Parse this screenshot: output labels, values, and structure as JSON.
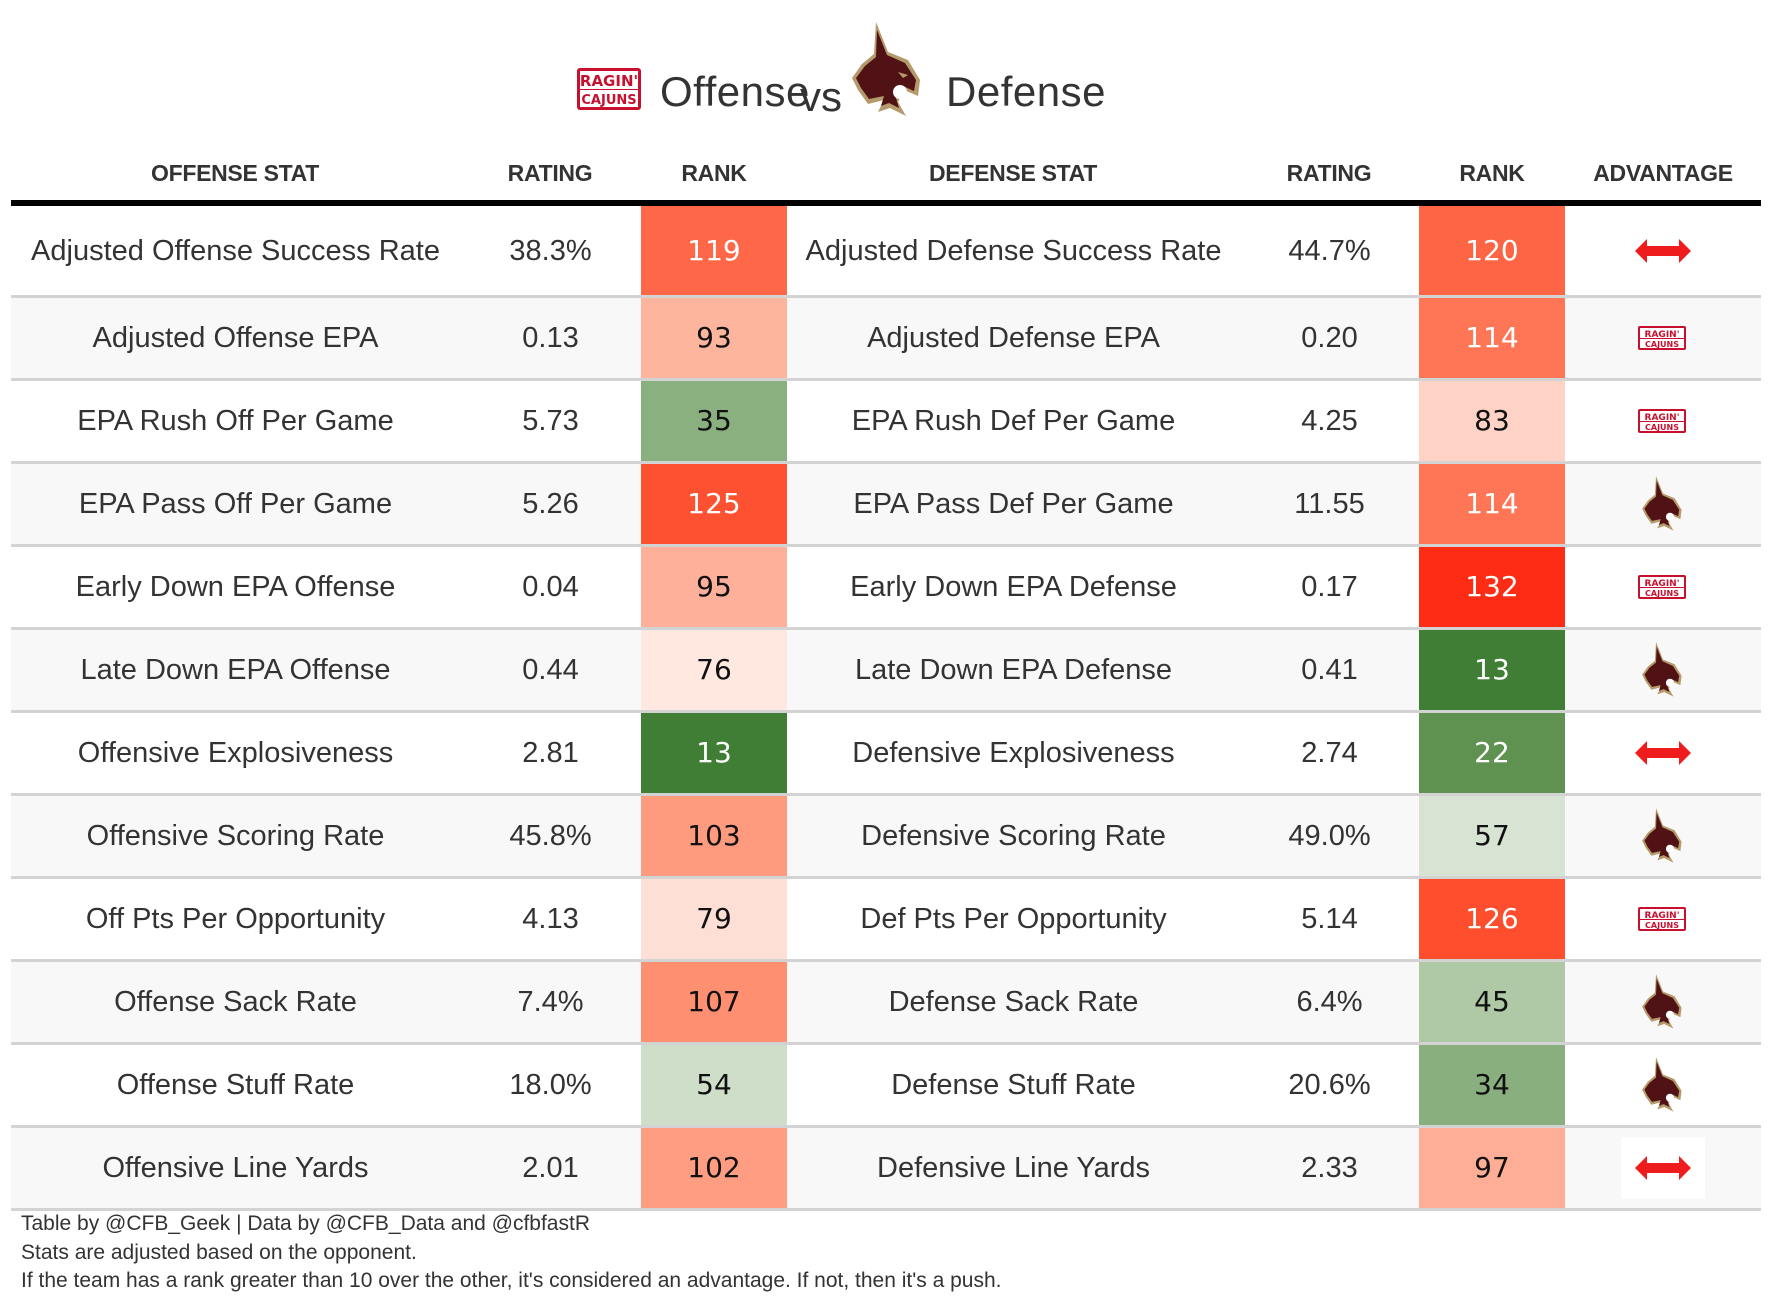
{
  "title": {
    "offense_team_logo": "ragin-cajuns-logo",
    "offense_label": "Offense",
    "vs_label": "vs",
    "defense_team_logo": "texas-state-bobcat-logo",
    "defense_label": "Defense"
  },
  "headers": {
    "offense_stat": "OFFENSE STAT",
    "offense_rating": "RATING",
    "offense_rank": "RANK",
    "defense_stat": "DEFENSE STAT",
    "defense_rating": "RATING",
    "defense_rank": "RANK",
    "advantage": "ADVANTAGE"
  },
  "colors": {
    "offense_logo_red": "#c8102e",
    "bobcat_maroon": "#501214",
    "bobcat_gold": "#b59a6b",
    "push_arrow_red": "#ee1c1c"
  },
  "rows": [
    {
      "off_stat": "Adjusted Offense Success Rate",
      "off_rating": "38.3%",
      "off_rank": "119",
      "off_rank_color": "#fe6747",
      "off_rank_text": "dark",
      "def_stat": "Adjusted Defense Success Rate",
      "def_rating": "44.7%",
      "def_rank": "120",
      "def_rank_color": "#fe6544",
      "def_rank_text": "dark",
      "advantage": "push"
    },
    {
      "off_stat": "Adjusted Offense EPA",
      "off_rating": "0.13",
      "off_rank": "93",
      "off_rank_color": "#feb59e",
      "off_rank_text": "light",
      "def_stat": "Adjusted Defense EPA",
      "def_rating": "0.20",
      "def_rank": "114",
      "def_rank_color": "#fe7656",
      "def_rank_text": "dark",
      "advantage": "offense"
    },
    {
      "off_stat": "EPA Rush Off Per Game",
      "off_rating": "5.73",
      "off_rank": "35",
      "off_rank_color": "#8bb07f",
      "off_rank_text": "light",
      "def_stat": "EPA Rush Def Per Game",
      "def_rating": "4.25",
      "def_rank": "83",
      "def_rank_color": "#fed3c5",
      "def_rank_text": "light",
      "advantage": "offense"
    },
    {
      "off_stat": "EPA Pass Off Per Game",
      "off_rating": "5.26",
      "off_rank": "125",
      "off_rank_color": "#fe5131",
      "off_rank_text": "dark",
      "def_stat": "EPA Pass Def Per Game",
      "def_rating": "11.55",
      "def_rank": "114",
      "def_rank_color": "#fe7656",
      "def_rank_text": "dark",
      "advantage": "defense"
    },
    {
      "off_stat": "Early Down EPA Offense",
      "off_rating": "0.04",
      "off_rank": "95",
      "off_rank_color": "#feb09a",
      "off_rank_text": "light",
      "def_stat": "Early Down EPA Defense",
      "def_rating": "0.17",
      "def_rank": "132",
      "def_rank_color": "#fe2c14",
      "def_rank_text": "dark",
      "advantage": "offense"
    },
    {
      "off_stat": "Late Down EPA Offense",
      "off_rating": "0.44",
      "off_rank": "76",
      "off_rank_color": "#fee8e0",
      "off_rank_text": "light",
      "def_stat": "Late Down EPA Defense",
      "def_rating": "0.41",
      "def_rank": "13",
      "def_rank_color": "#407d35",
      "def_rank_text": "dark",
      "advantage": "defense"
    },
    {
      "off_stat": "Offensive Explosiveness",
      "off_rating": "2.81",
      "off_rank": "13",
      "off_rank_color": "#407d35",
      "off_rank_text": "dark",
      "def_stat": "Defensive Explosiveness",
      "def_rating": "2.74",
      "def_rank": "22",
      "def_rank_color": "#5f9251",
      "def_rank_text": "dark",
      "advantage": "push"
    },
    {
      "off_stat": "Offensive Scoring Rate",
      "off_rating": "45.8%",
      "off_rank": "103",
      "off_rank_color": "#fe9b7f",
      "off_rank_text": "light",
      "def_stat": "Defensive Scoring Rate",
      "def_rating": "49.0%",
      "def_rank": "57",
      "def_rank_color": "#d8e4d3",
      "def_rank_text": "light",
      "advantage": "defense"
    },
    {
      "off_stat": "Off Pts Per Opportunity",
      "off_rating": "4.13",
      "off_rank": "79",
      "off_rank_color": "#fedfd6",
      "off_rank_text": "light",
      "def_stat": "Def Pts Per Opportunity",
      "def_rating": "5.14",
      "def_rank": "126",
      "def_rank_color": "#fe4e2e",
      "def_rank_text": "dark",
      "advantage": "offense"
    },
    {
      "off_stat": "Offense Sack Rate",
      "off_rating": "7.4%",
      "off_rank": "107",
      "off_rank_color": "#fe8f71",
      "off_rank_text": "light",
      "def_stat": "Defense Sack Rate",
      "def_rating": "6.4%",
      "def_rank": "45",
      "def_rank_color": "#afc9a6",
      "def_rank_text": "light",
      "advantage": "defense"
    },
    {
      "off_stat": "Offense Stuff Rate",
      "off_rating": "18.0%",
      "off_rank": "54",
      "off_rank_color": "#cfdec9",
      "off_rank_text": "light",
      "def_stat": "Defense Stuff Rate",
      "def_rating": "20.6%",
      "def_rank": "34",
      "def_rank_color": "#8aaf7e",
      "def_rank_text": "light",
      "advantage": "defense"
    },
    {
      "off_stat": "Offensive Line Yards",
      "off_rating": "2.01",
      "off_rank": "102",
      "off_rank_color": "#fe9d81",
      "off_rank_text": "light",
      "def_stat": "Defensive Line Yards",
      "def_rating": "2.33",
      "def_rank": "97",
      "def_rank_color": "#feae96",
      "def_rank_text": "light",
      "advantage": "push"
    }
  ],
  "footer": {
    "line1": "Table by @CFB_Geek | Data by @CFB_Data and @cfbfastR",
    "line2": "Stats are adjusted based on the opponent.",
    "line3": "If the team has a rank greater than 10 over the other, it's considered an advantage. If not, then it's a push."
  }
}
